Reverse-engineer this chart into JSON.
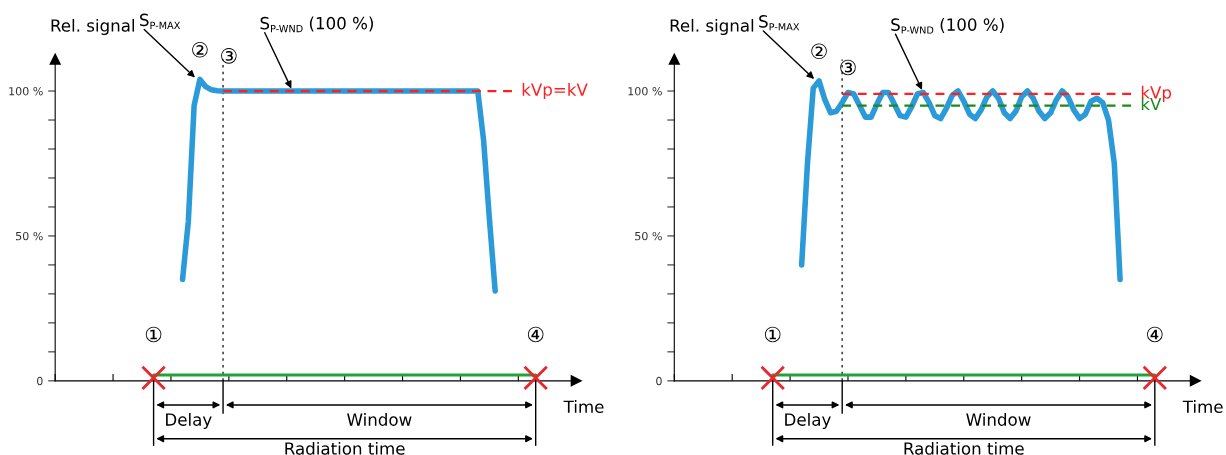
{
  "chart_data": [
    {
      "type": "line",
      "xlabel": "Time",
      "ylabel": "Rel. signal",
      "ylim": [
        0,
        111
      ],
      "categories": [
        null,
        null,
        null,
        null,
        null,
        null,
        null,
        null,
        null,
        null,
        null,
        null,
        null,
        null,
        null,
        null,
        null,
        null,
        null,
        null,
        null,
        null,
        null,
        null,
        null,
        null,
        null,
        null,
        null,
        null,
        null,
        null,
        null,
        null,
        null,
        null,
        null,
        null,
        null,
        null,
        null,
        null,
        null,
        null,
        null,
        null,
        null,
        null,
        null,
        null,
        null,
        null,
        null,
        null,
        null,
        null,
        null,
        null,
        null,
        null,
        null,
        null,
        null,
        null,
        null,
        null,
        null,
        null,
        null,
        null,
        null,
        null,
        null,
        null,
        null,
        null,
        null,
        null,
        null,
        null,
        null,
        null,
        null,
        null,
        null,
        null,
        null,
        null,
        null,
        null,
        null
      ],
      "yticks": [
        0,
        {
          "value": 10,
          "label": null
        },
        {
          "value": 20,
          "label": null
        },
        {
          "value": 30,
          "label": null
        },
        {
          "value": 40,
          "label": null
        },
        {
          "value": 50,
          "label": "50 %"
        },
        {
          "value": 60,
          "label": null
        },
        {
          "value": 70,
          "label": null
        },
        {
          "value": 80,
          "label": null
        },
        {
          "value": 90,
          "label": null
        },
        {
          "value": 100,
          "label": "100 %"
        }
      ],
      "series": [
        {
          "color": "#2a9ad8",
          "values": [
            null,
            null,
            null,
            null,
            null,
            null,
            null,
            null,
            null,
            null,
            null,
            null,
            null,
            null,
            null,
            null,
            null,
            null,
            null,
            null,
            null,
            null,
            35,
            55,
            95,
            104,
            101.5,
            100.4,
            100.1,
            100,
            100,
            100,
            100,
            100,
            100,
            100,
            100,
            100,
            100,
            100,
            100,
            100,
            100,
            100,
            100,
            100,
            100,
            100,
            100,
            100,
            100,
            100,
            100,
            100,
            100,
            100,
            100,
            100,
            100,
            100,
            100,
            100,
            100,
            100,
            100,
            100,
            100,
            100,
            100,
            100,
            100,
            100,
            100,
            100,
            83,
            56,
            31,
            null,
            null,
            null,
            null,
            null,
            null,
            null,
            null,
            null,
            null,
            null,
            null,
            null,
            null
          ]
        },
        {
          "color": "#22a33a",
          "values": [
            null,
            null,
            null,
            null,
            null,
            null,
            null,
            null,
            null,
            null,
            null,
            null,
            null,
            null,
            null,
            null,
            null,
            2,
            2,
            2,
            2,
            2,
            2,
            2,
            2,
            2,
            2,
            2,
            2,
            2,
            2,
            2,
            2,
            2,
            2,
            2,
            2,
            2,
            2,
            2,
            2,
            2,
            2,
            2,
            2,
            2,
            2,
            2,
            2,
            2,
            2,
            2,
            2,
            2,
            2,
            2,
            2,
            2,
            2,
            2,
            2,
            2,
            2,
            2,
            2,
            2,
            2,
            2,
            2,
            2,
            2,
            2,
            2,
            2,
            2,
            2,
            2,
            2,
            2,
            2,
            2,
            2,
            2,
            2,
            null,
            null,
            null,
            null,
            null,
            null,
            null
          ]
        }
      ],
      "ref_lines": [
        {
          "axis": "y",
          "value": 100,
          "label": "kVp=kV",
          "color": "#ff2020",
          "line_style": "dashed"
        }
      ],
      "annotations": [
        "Delay",
        "Window",
        "Radiation time",
        "①",
        "②",
        "③",
        "④",
        "S$_{P-MAX}$",
        "S$_{P-WND}$ (100 %)"
      ]
    },
    {
      "type": "line",
      "xlabel": "Time",
      "ylabel": "Rel. signal",
      "ylim": [
        0,
        111
      ],
      "categories": [
        null,
        null,
        null,
        null,
        null,
        null,
        null,
        null,
        null,
        null,
        null,
        null,
        null,
        null,
        null,
        null,
        null,
        null,
        null,
        null,
        null,
        null,
        null,
        null,
        null,
        null,
        null,
        null,
        null,
        null,
        null,
        null,
        null,
        null,
        null,
        null,
        null,
        null,
        null,
        null,
        null,
        null,
        null,
        null,
        null,
        null,
        null,
        null,
        null,
        null,
        null,
        null,
        null,
        null,
        null,
        null,
        null,
        null,
        null,
        null,
        null,
        null,
        null,
        null,
        null,
        null,
        null,
        null,
        null,
        null,
        null,
        null,
        null,
        null,
        null,
        null,
        null,
        null,
        null,
        null,
        null,
        null,
        null,
        null,
        null,
        null,
        null,
        null,
        null,
        null,
        null
      ],
      "yticks": [
        0,
        {
          "value": 10,
          "label": null
        },
        {
          "value": 20,
          "label": null
        },
        {
          "value": 30,
          "label": null
        },
        {
          "value": 40,
          "label": null
        },
        {
          "value": 50,
          "label": "50 %"
        },
        {
          "value": 60,
          "label": null
        },
        {
          "value": 70,
          "label": null
        },
        {
          "value": 80,
          "label": null
        },
        {
          "value": 90,
          "label": null
        },
        {
          "value": 100,
          "label": "100 %"
        }
      ],
      "series": [
        {
          "color": "#2a9ad8",
          "values": [
            null,
            null,
            null,
            null,
            null,
            null,
            null,
            null,
            null,
            null,
            null,
            null,
            null,
            null,
            null,
            null,
            null,
            null,
            null,
            null,
            null,
            null,
            40,
            75,
            101,
            103.5,
            97,
            92.5,
            93,
            96,
            99.5,
            99,
            95,
            91,
            91,
            95.5,
            99.5,
            99.5,
            95.5,
            91.5,
            91,
            94.5,
            99,
            99.5,
            96,
            91.5,
            90.5,
            94,
            98.5,
            100,
            96.5,
            92,
            90.5,
            93.5,
            98,
            100,
            97.5,
            92.5,
            90.5,
            93,
            98,
            100,
            97.5,
            93,
            90.5,
            92.5,
            97,
            100,
            98,
            93.5,
            90.5,
            92,
            96.5,
            97.5,
            96,
            90,
            75,
            35,
            null,
            null,
            null,
            null,
            null,
            null,
            null,
            null,
            null,
            null,
            null,
            null,
            null
          ]
        },
        {
          "color": "#22a33a",
          "values": [
            null,
            null,
            null,
            null,
            null,
            null,
            null,
            null,
            null,
            null,
            null,
            null,
            null,
            null,
            null,
            null,
            null,
            2,
            2,
            2,
            2,
            2,
            2,
            2,
            2,
            2,
            2,
            2,
            2,
            2,
            2,
            2,
            2,
            2,
            2,
            2,
            2,
            2,
            2,
            2,
            2,
            2,
            2,
            2,
            2,
            2,
            2,
            2,
            2,
            2,
            2,
            2,
            2,
            2,
            2,
            2,
            2,
            2,
            2,
            2,
            2,
            2,
            2,
            2,
            2,
            2,
            2,
            2,
            2,
            2,
            2,
            2,
            2,
            2,
            2,
            2,
            2,
            2,
            2,
            2,
            2,
            2,
            2,
            2,
            null,
            null,
            null,
            null,
            null,
            null,
            null
          ]
        }
      ],
      "ref_lines": [
        {
          "axis": "y",
          "value": 99,
          "label": "kVp",
          "color": "#ff2020",
          "line_style": "dashed"
        },
        {
          "axis": "y",
          "value": 95,
          "label": "kV",
          "color": "#1a8a1a",
          "line_style": "dashed"
        }
      ],
      "annotations": [
        "Delay",
        "Window",
        "Radiation time",
        "①",
        "②",
        "③",
        "④",
        "S$_{P-MAX}$",
        "S$_{P-WND}$ (100 %)"
      ]
    }
  ]
}
